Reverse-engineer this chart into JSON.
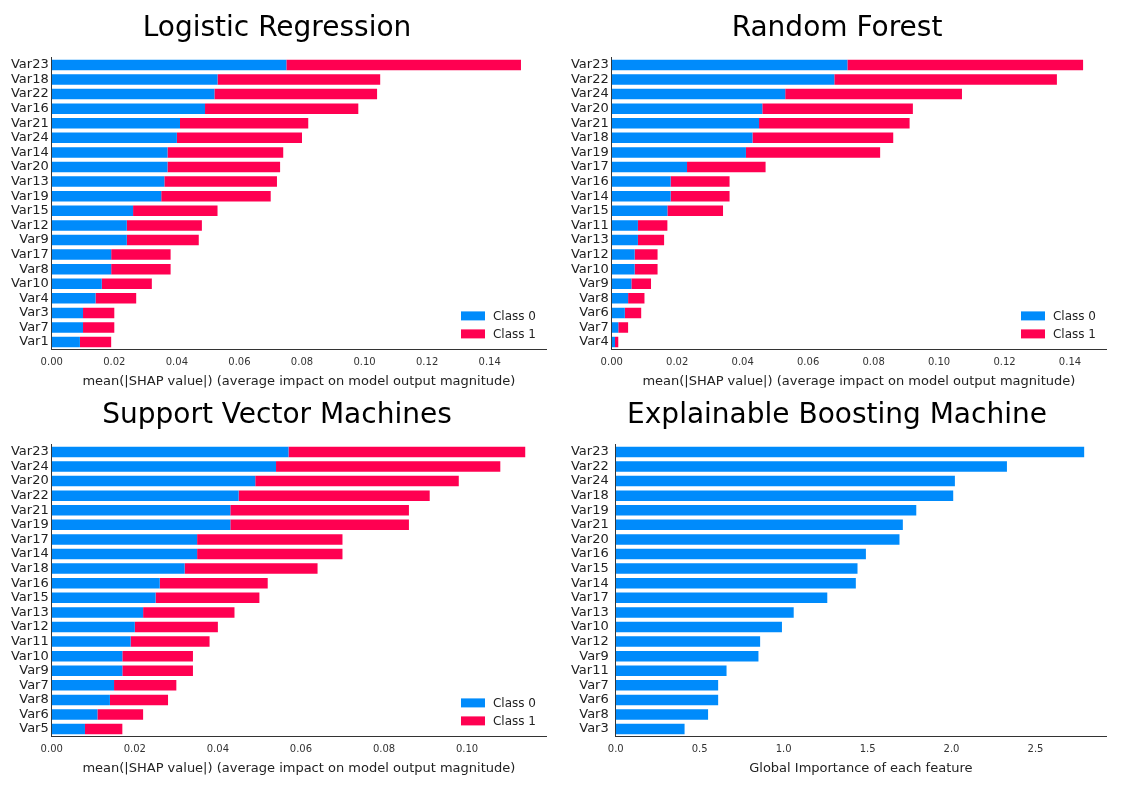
{
  "chart_data": [
    {
      "type": "bar",
      "title": "Logistic Regression",
      "xlabel": "mean(|SHAP value|) (average impact on model output magnitude)",
      "orientation": "horizontal",
      "stacked": true,
      "legend": "bottom right",
      "categories": [
        "Var23",
        "Var18",
        "Var22",
        "Var16",
        "Var21",
        "Var24",
        "Var14",
        "Var20",
        "Var13",
        "Var19",
        "Var15",
        "Var12",
        "Var9",
        "Var17",
        "Var8",
        "Var10",
        "Var4",
        "Var3",
        "Var7",
        "Var1"
      ],
      "series": [
        {
          "name": "Class 0",
          "color": "#008bfb",
          "values": [
            0.075,
            0.053,
            0.052,
            0.049,
            0.041,
            0.04,
            0.037,
            0.037,
            0.036,
            0.035,
            0.026,
            0.024,
            0.024,
            0.019,
            0.019,
            0.016,
            0.014,
            0.01,
            0.01,
            0.009
          ]
        },
        {
          "name": "Class 1",
          "color": "#ff0051",
          "values": [
            0.075,
            0.052,
            0.052,
            0.049,
            0.041,
            0.04,
            0.037,
            0.036,
            0.036,
            0.035,
            0.027,
            0.024,
            0.023,
            0.019,
            0.019,
            0.016,
            0.013,
            0.01,
            0.01,
            0.01
          ]
        }
      ],
      "xlim": [
        0,
        0.158
      ],
      "xticks": [
        {
          "value": 0,
          "label": "0.00"
        },
        {
          "value": 0.02,
          "label": "0.02"
        },
        {
          "value": 0.04,
          "label": "0.04"
        },
        {
          "value": 0.06,
          "label": "0.06"
        },
        {
          "value": 0.08,
          "label": "0.08"
        },
        {
          "value": 0.1,
          "label": "0.10"
        },
        {
          "value": 0.12,
          "label": "0.12"
        },
        {
          "value": 0.14,
          "label": "0.14"
        }
      ]
    },
    {
      "type": "bar",
      "title": "Random Forest",
      "xlabel": "mean(|SHAP value|) (average impact on model output magnitude)",
      "orientation": "horizontal",
      "stacked": true,
      "legend": "bottom right",
      "categories": [
        "Var23",
        "Var22",
        "Var24",
        "Var20",
        "Var21",
        "Var18",
        "Var19",
        "Var17",
        "Var16",
        "Var14",
        "Var15",
        "Var11",
        "Var13",
        "Var12",
        "Var10",
        "Var9",
        "Var8",
        "Var6",
        "Var7",
        "Var4"
      ],
      "series": [
        {
          "name": "Class 0",
          "color": "#008bfb",
          "values": [
            0.072,
            0.068,
            0.053,
            0.046,
            0.045,
            0.043,
            0.041,
            0.023,
            0.018,
            0.018,
            0.017,
            0.008,
            0.008,
            0.007,
            0.007,
            0.006,
            0.005,
            0.004,
            0.002,
            0.001
          ]
        },
        {
          "name": "Class 1",
          "color": "#ff0051",
          "values": [
            0.072,
            0.068,
            0.054,
            0.046,
            0.046,
            0.043,
            0.041,
            0.024,
            0.018,
            0.018,
            0.017,
            0.009,
            0.008,
            0.007,
            0.007,
            0.006,
            0.005,
            0.005,
            0.003,
            0.001
          ]
        }
      ],
      "xlim": [
        0,
        0.151
      ],
      "xticks": [
        {
          "value": 0,
          "label": "0.00"
        },
        {
          "value": 0.02,
          "label": "0.02"
        },
        {
          "value": 0.04,
          "label": "0.04"
        },
        {
          "value": 0.06,
          "label": "0.06"
        },
        {
          "value": 0.08,
          "label": "0.08"
        },
        {
          "value": 0.1,
          "label": "0.10"
        },
        {
          "value": 0.12,
          "label": "0.12"
        },
        {
          "value": 0.14,
          "label": "0.14"
        }
      ]
    },
    {
      "type": "bar",
      "title": "Support Vector Machines",
      "xlabel": "mean(|SHAP value|) (average impact on model output magnitude)",
      "orientation": "horizontal",
      "stacked": true,
      "legend": "bottom right",
      "categories": [
        "Var23",
        "Var24",
        "Var20",
        "Var22",
        "Var21",
        "Var19",
        "Var17",
        "Var14",
        "Var18",
        "Var16",
        "Var15",
        "Var13",
        "Var12",
        "Var11",
        "Var10",
        "Var9",
        "Var7",
        "Var8",
        "Var6",
        "Var5"
      ],
      "series": [
        {
          "name": "Class 0",
          "color": "#008bfb",
          "values": [
            0.057,
            0.054,
            0.049,
            0.045,
            0.043,
            0.043,
            0.035,
            0.035,
            0.032,
            0.026,
            0.025,
            0.022,
            0.02,
            0.019,
            0.017,
            0.017,
            0.015,
            0.014,
            0.011,
            0.008
          ]
        },
        {
          "name": "Class 1",
          "color": "#ff0051",
          "values": [
            0.057,
            0.054,
            0.049,
            0.046,
            0.043,
            0.043,
            0.035,
            0.035,
            0.032,
            0.026,
            0.025,
            0.022,
            0.02,
            0.019,
            0.017,
            0.017,
            0.015,
            0.014,
            0.011,
            0.009
          ]
        }
      ],
      "xlim": [
        0,
        0.119
      ],
      "xticks": [
        {
          "value": 0,
          "label": "0.00"
        },
        {
          "value": 0.02,
          "label": "0.02"
        },
        {
          "value": 0.04,
          "label": "0.04"
        },
        {
          "value": 0.06,
          "label": "0.06"
        },
        {
          "value": 0.08,
          "label": "0.08"
        },
        {
          "value": 0.1,
          "label": "0.10"
        }
      ]
    },
    {
      "type": "bar",
      "title": "Explainable Boosting Machine",
      "xlabel": "Global Importance of each feature",
      "orientation": "horizontal",
      "categories": [
        "Var23",
        "Var22",
        "Var24",
        "Var18",
        "Var19",
        "Var21",
        "Var20",
        "Var16",
        "Var15",
        "Var14",
        "Var17",
        "Var13",
        "Var10",
        "Var12",
        "Var9",
        "Var11",
        "Var7",
        "Var6",
        "Var8",
        "Var3"
      ],
      "series": [
        {
          "color": "#008bfb",
          "values": [
            2.79,
            2.33,
            2.02,
            2.01,
            1.79,
            1.71,
            1.69,
            1.49,
            1.44,
            1.43,
            1.26,
            1.06,
            0.99,
            0.86,
            0.85,
            0.66,
            0.61,
            0.61,
            0.55,
            0.41
          ]
        }
      ],
      "xlim": [
        0,
        2.92
      ],
      "xticks": [
        {
          "value": 0,
          "label": "0.0"
        },
        {
          "value": 0.5,
          "label": "0.5"
        },
        {
          "value": 1,
          "label": "1.0"
        },
        {
          "value": 1.5,
          "label": "1.5"
        },
        {
          "value": 2,
          "label": "2.0"
        },
        {
          "value": 2.5,
          "label": "2.5"
        }
      ]
    }
  ]
}
